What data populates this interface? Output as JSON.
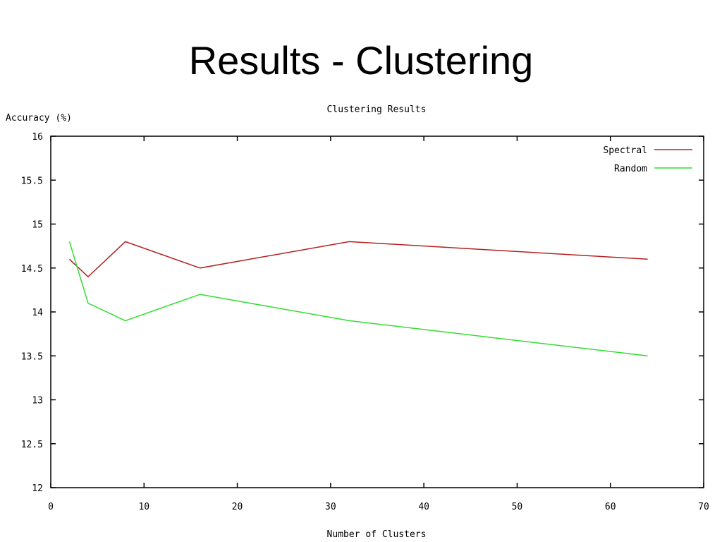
{
  "slide": {
    "title": "Results - Clustering"
  },
  "chart_data": {
    "type": "line",
    "title": "Clustering Results",
    "xlabel": "Number of Clusters",
    "ylabel": "Accuracy (%)",
    "xlim": [
      0,
      70
    ],
    "ylim": [
      12,
      16
    ],
    "xticks": [
      "0",
      "10",
      "20",
      "30",
      "40",
      "50",
      "60",
      "70"
    ],
    "yticks": [
      "12",
      "12.5",
      "13",
      "13.5",
      "14",
      "14.5",
      "15",
      "15.5",
      "16"
    ],
    "grid": false,
    "legend": "top-right",
    "x": [
      2,
      4,
      8,
      16,
      32,
      64
    ],
    "series": [
      {
        "name": "Spectral",
        "color": "#b22222",
        "values": [
          14.6,
          14.4,
          14.8,
          14.5,
          14.8,
          14.6
        ]
      },
      {
        "name": "Random",
        "color": "#33dd33",
        "values": [
          14.8,
          14.1,
          13.9,
          14.2,
          13.9,
          13.5
        ]
      }
    ]
  }
}
